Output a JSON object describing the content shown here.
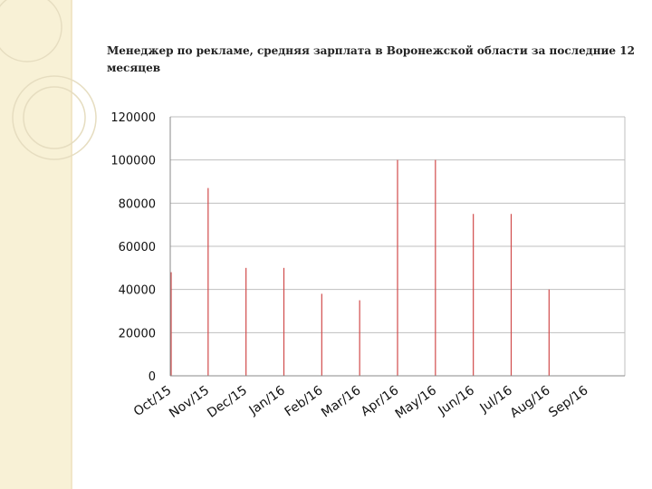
{
  "theme": {
    "sidebar_color": "#f8f1d6",
    "circle_color": "#e6ddc0",
    "bar_color": "#d14b4b",
    "grid_color": "#bfbfbf",
    "axis_color": "#888888"
  },
  "chart_data": {
    "type": "bar",
    "title": "Менеджер по рекламе, средняя зарплата в Воронежской области за последние 12 месяцев",
    "xlabel": "",
    "ylabel": "",
    "categories": [
      "Oct/15",
      "Nov/15",
      "Dec/15",
      "Jan/16",
      "Feb/16",
      "Mar/16",
      "Apr/16",
      "May/16",
      "Jun/16",
      "Jul/16",
      "Aug/16",
      "Sep/16"
    ],
    "values": [
      48000,
      87000,
      50000,
      50000,
      38000,
      35000,
      100000,
      100000,
      75000,
      75000,
      40000,
      0
    ],
    "ylim": [
      0,
      120000
    ],
    "yticks": [
      0,
      20000,
      40000,
      60000,
      80000,
      100000,
      120000
    ],
    "ytick_labels": [
      "0",
      "20000",
      "40000",
      "60000",
      "80000",
      "100000",
      "120000"
    ],
    "grid": true,
    "legend": "none"
  }
}
